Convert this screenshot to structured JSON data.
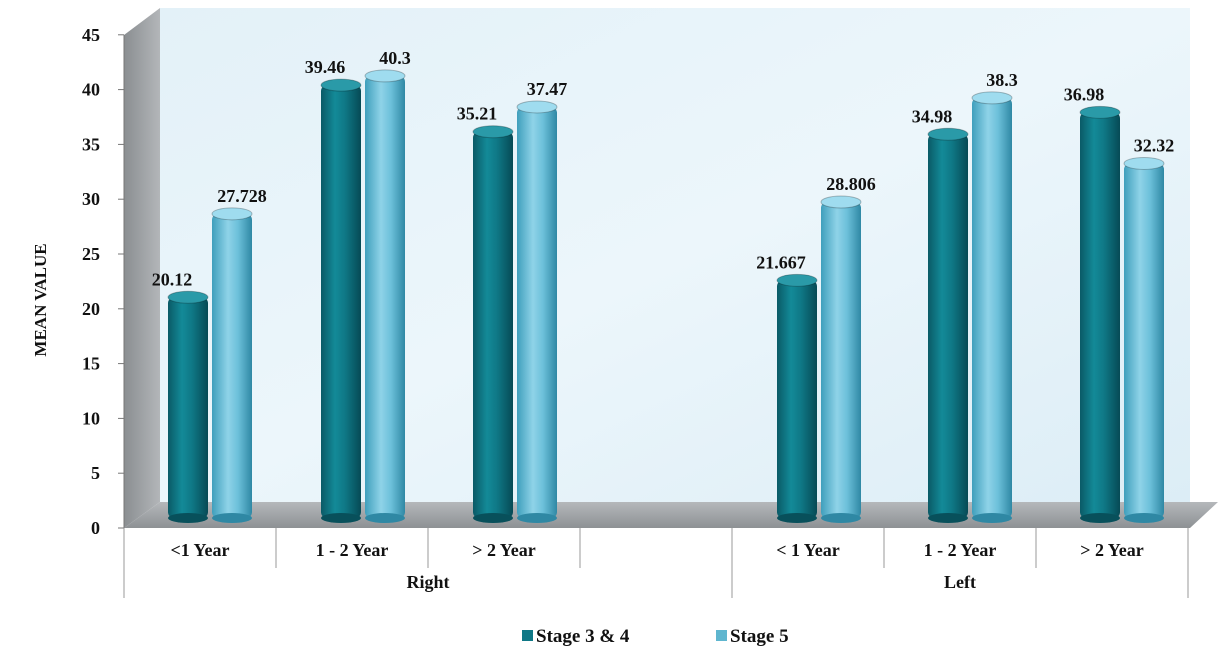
{
  "chart_data": {
    "type": "bar",
    "title": "",
    "xlabel": "",
    "ylabel": "MEAN VALUE",
    "ylim": [
      0,
      45
    ],
    "yticks": [
      "0",
      "5",
      "10",
      "15",
      "20",
      "25",
      "30",
      "35",
      "40",
      "45"
    ],
    "groups": [
      {
        "label": "Right",
        "categories": [
          "<1 Year",
          "1 - 2 Year",
          "> 2 Year"
        ]
      },
      {
        "label": "Left",
        "categories": [
          "< 1 Year",
          "1 - 2 Year",
          "> 2 Year"
        ]
      }
    ],
    "series": [
      {
        "name": "Stage 3 & 4",
        "color": "#0f7886",
        "values": [
          20.12,
          39.46,
          35.21,
          21.667,
          34.98,
          36.98
        ],
        "labels": [
          "20.12",
          "39.46",
          "35.21",
          "21.667",
          "34.98",
          "36.98"
        ]
      },
      {
        "name": "Stage 5",
        "color": "#5fb6cf",
        "values": [
          27.728,
          40.3,
          37.47,
          28.806,
          38.3,
          32.32
        ],
        "labels": [
          "27.728",
          "40.3",
          "37.47",
          "28.806",
          "38.3",
          "32.32"
        ]
      }
    ],
    "grid": false,
    "legend_position": "bottom"
  }
}
